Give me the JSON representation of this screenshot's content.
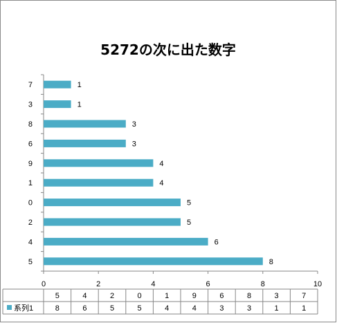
{
  "chart_data": {
    "type": "bar",
    "orientation": "horizontal",
    "title": "5272の次に出た数字",
    "categories": [
      "5",
      "4",
      "2",
      "0",
      "1",
      "9",
      "6",
      "8",
      "3",
      "7"
    ],
    "series": [
      {
        "name": "系列1",
        "values": [
          8,
          6,
          5,
          5,
          4,
          4,
          3,
          3,
          1,
          1
        ],
        "color": "#4bacc6"
      }
    ],
    "xlim": [
      0,
      10
    ],
    "xticks": [
      0,
      2,
      4,
      6,
      8,
      10
    ],
    "data_labels": true,
    "data_table": true,
    "legend": "data-table-left",
    "grid": false
  }
}
